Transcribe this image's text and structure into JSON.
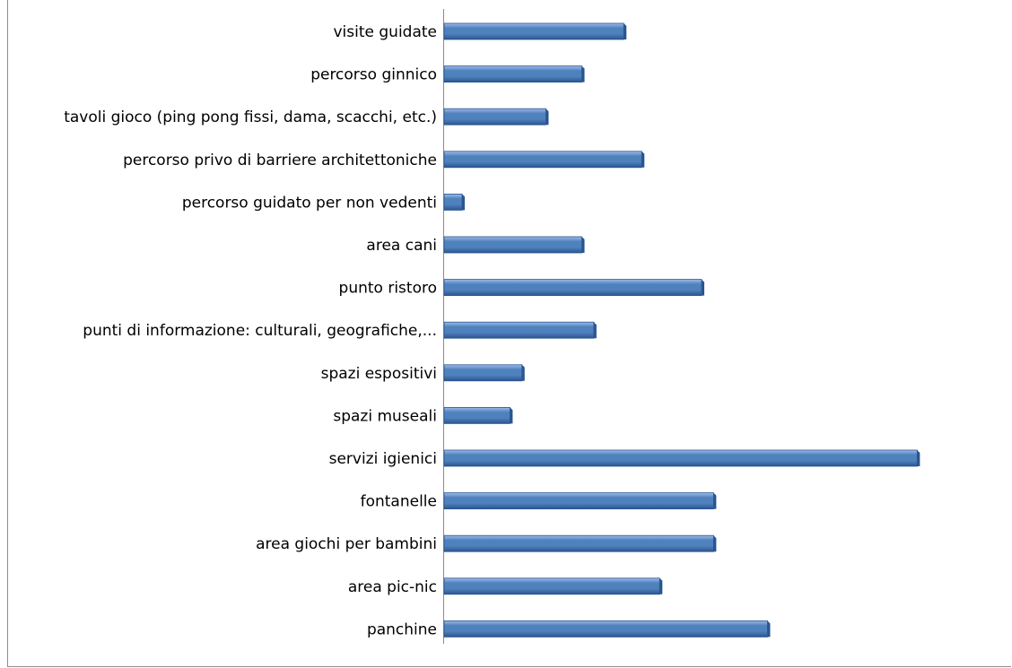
{
  "chart_data": {
    "type": "bar",
    "orientation": "horizontal",
    "categories": [
      "visite guidate",
      "percorso ginnico",
      "tavoli gioco (ping pong fissi, dama, scacchi, etc.)",
      "percorso privo di barriere architettoniche",
      "percorso guidato per non vedenti",
      "area cani",
      "punto ristoro",
      "punti di informazione: culturali, geografiche,...",
      "spazi espositivi",
      "spazi museali",
      "servizi igienici",
      "fontanelle",
      "area giochi per bambini",
      "area pic-nic",
      "panchine"
    ],
    "values": [
      30,
      23,
      17,
      33,
      3,
      23,
      43,
      25,
      13,
      11,
      79,
      45,
      45,
      36,
      54
    ],
    "xlim": [
      0,
      80
    ],
    "grid": false,
    "legend": "none",
    "bar_color": "#4f81bd",
    "bar_dark": "#2b5590",
    "bar_light": "#9dbcea"
  }
}
